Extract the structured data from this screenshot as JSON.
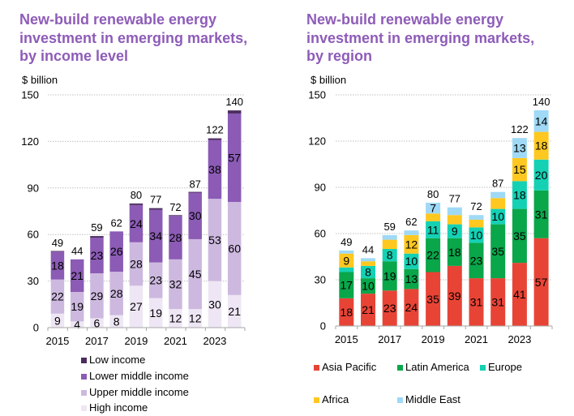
{
  "chart_data": [
    {
      "type": "bar",
      "stacked": true,
      "title_lines": [
        "New-build renewable energy",
        "investment in emerging markets,",
        "by income level"
      ],
      "ylabel": "$ billion",
      "xlabel": "",
      "ylim": [
        0,
        150
      ],
      "yticks": [
        0,
        30,
        60,
        90,
        120,
        150
      ],
      "grid": true,
      "categories": [
        "2015",
        "2016",
        "2017",
        "2018",
        "2019",
        "2020",
        "2021",
        "2022",
        "2023",
        "2024"
      ],
      "xtick_labels": [
        "2015",
        "",
        "2017",
        "",
        "2019",
        "",
        "2021",
        "",
        "2023",
        ""
      ],
      "totals": [
        49,
        44,
        59,
        62,
        80,
        77,
        72,
        87,
        122,
        140
      ],
      "legend_position": "bottom",
      "series": [
        {
          "name": "High income",
          "color": "#EEE6F4",
          "values": [
            9,
            4,
            6,
            8,
            27,
            19,
            12,
            12,
            30,
            21
          ],
          "labels": [
            "9",
            "4",
            "6",
            "8",
            "27",
            "19",
            "12",
            "12",
            "30",
            "21"
          ]
        },
        {
          "name": "Upper middle income",
          "color": "#CDB9DF",
          "values": [
            22,
            19,
            29,
            28,
            28,
            23,
            32,
            45,
            53,
            60
          ],
          "labels": [
            "22",
            "19",
            "29",
            "28",
            "28",
            "23",
            "32",
            "45",
            "53",
            "60"
          ]
        },
        {
          "name": "Lower middle income",
          "color": "#8B5BB5",
          "values": [
            18,
            21,
            23,
            26,
            24,
            34,
            28,
            30,
            38,
            57
          ],
          "labels": [
            "18",
            "21",
            "23",
            "26",
            "24",
            "34",
            "28",
            "30",
            "38",
            "57"
          ]
        },
        {
          "name": "Low income",
          "color": "#4B2C5E",
          "values": [
            0.4,
            0,
            1,
            0,
            1,
            1,
            0.5,
            0.5,
            1,
            2
          ],
          "labels": [
            null,
            null,
            null,
            null,
            null,
            null,
            null,
            null,
            null,
            null
          ]
        }
      ],
      "legend_order": [
        "Low income",
        "Lower middle income",
        "Upper middle income",
        "High income"
      ]
    },
    {
      "type": "bar",
      "stacked": true,
      "title_lines": [
        "New-build renewable energy",
        "investment in emerging markets,",
        "by region"
      ],
      "ylabel": "$ billion",
      "xlabel": "",
      "ylim": [
        0,
        150
      ],
      "yticks": [
        0,
        30,
        60,
        90,
        120,
        150
      ],
      "grid": true,
      "categories": [
        "2015",
        "2016",
        "2017",
        "2018",
        "2019",
        "2020",
        "2021",
        "2022",
        "2023",
        "2024"
      ],
      "xtick_labels": [
        "2015",
        "",
        "2017",
        "",
        "2019",
        "",
        "2021",
        "",
        "2023",
        ""
      ],
      "totals": [
        49,
        44,
        59,
        62,
        80,
        77,
        72,
        87,
        122,
        140
      ],
      "legend_position": "bottom",
      "series": [
        {
          "name": "Asia Pacific",
          "color": "#E84436",
          "values": [
            18,
            21,
            23,
            24,
            35,
            39,
            31,
            31,
            41,
            57
          ],
          "labels": [
            "18",
            "21",
            "23",
            "24",
            "35",
            "39",
            "31",
            "31",
            "41",
            "57"
          ]
        },
        {
          "name": "Latin America",
          "color": "#0AA64A",
          "values": [
            17,
            10,
            19,
            13,
            22,
            18,
            23,
            35,
            35,
            31
          ],
          "labels": [
            "17",
            "10",
            "19",
            "13",
            "22",
            "18",
            "23",
            "35",
            "35",
            "31"
          ]
        },
        {
          "name": "Europe",
          "color": "#14D1B4",
          "values": [
            3,
            8,
            8,
            10,
            11,
            9,
            10,
            10,
            18,
            20
          ],
          "labels": [
            null,
            "8",
            "8",
            "10",
            "11",
            "9",
            "10",
            "10",
            "18",
            "20"
          ]
        },
        {
          "name": "Africa",
          "color": "#FFC820",
          "values": [
            9,
            3,
            6,
            12,
            5,
            6,
            5,
            7,
            15,
            18
          ],
          "labels": [
            "9",
            null,
            null,
            "12",
            null,
            null,
            null,
            null,
            "15",
            "18"
          ]
        },
        {
          "name": "Middle East",
          "color": "#9FD9F6",
          "values": [
            2,
            2,
            3,
            3,
            7,
            5,
            3,
            4,
            13,
            14
          ],
          "labels": [
            null,
            null,
            null,
            null,
            "7",
            null,
            null,
            null,
            "13",
            "14"
          ]
        }
      ],
      "legend_order": [
        "Asia Pacific",
        "Latin America",
        "Europe",
        "Africa",
        "Middle East"
      ]
    }
  ],
  "legend_left": [
    {
      "label": "Low income",
      "color": "#4B2C5E"
    },
    {
      "label": "Lower middle income",
      "color": "#8B5BB5"
    },
    {
      "label": "Upper middle income",
      "color": "#CDB9DF"
    },
    {
      "label": "High income",
      "color": "#EEE6F4"
    }
  ],
  "legend_right": [
    {
      "label": "Asia Pacific",
      "color": "#E84436"
    },
    {
      "label": "Latin America",
      "color": "#0AA64A"
    },
    {
      "label": "Europe",
      "color": "#14D1B4"
    },
    {
      "label": "Africa",
      "color": "#FFC820"
    },
    {
      "label": "Middle East",
      "color": "#9FD9F6"
    }
  ]
}
